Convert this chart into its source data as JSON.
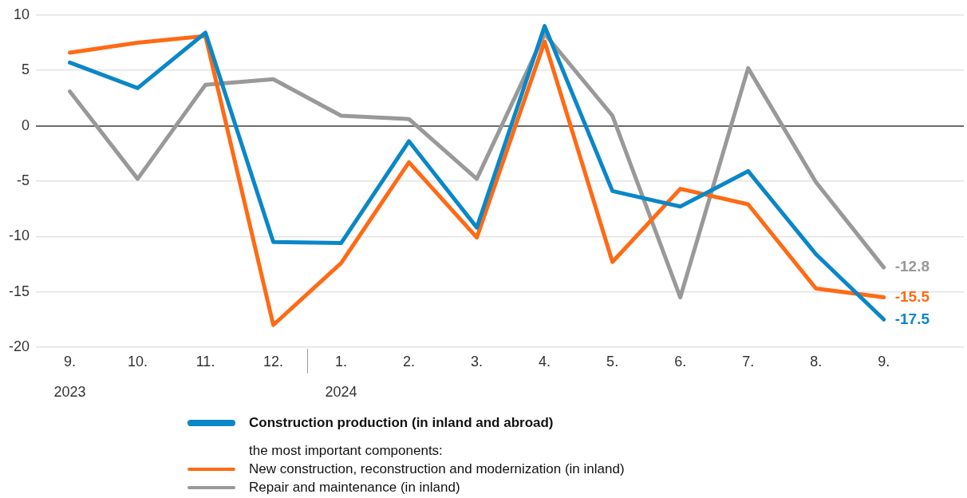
{
  "chart_data": {
    "type": "line",
    "categories": [
      "9.",
      "10.",
      "11.",
      "12.",
      "1.",
      "2.",
      "3.",
      "4.",
      "5.",
      "6.",
      "7.",
      "8.",
      "9."
    ],
    "series": [
      {
        "name": "Construction production (in inland and abroad)",
        "color": "#0a87c8",
        "values": [
          5.7,
          3.4,
          8.4,
          -10.5,
          -10.6,
          -1.4,
          -9.2,
          9.0,
          -5.9,
          -7.3,
          -4.1,
          -11.6,
          -17.5
        ],
        "value_labels": [
          null,
          null,
          null,
          null,
          null,
          null,
          null,
          null,
          null,
          null,
          null,
          null,
          "-17.5"
        ]
      },
      {
        "name": "New construction, reconstruction and modernization (in inland)",
        "color": "#ff6a14",
        "values": [
          6.6,
          7.5,
          8.1,
          -18.0,
          -12.4,
          -3.3,
          -10.1,
          7.6,
          -12.3,
          -5.7,
          -7.1,
          -14.7,
          -15.5
        ],
        "value_labels": [
          null,
          null,
          null,
          null,
          null,
          null,
          null,
          null,
          null,
          null,
          null,
          null,
          "-15.5"
        ]
      },
      {
        "name": "Repair and maintenance (in inland)",
        "color": "#999999",
        "values": [
          3.1,
          -4.8,
          3.7,
          4.2,
          0.9,
          0.6,
          -4.8,
          8.3,
          0.9,
          -15.5,
          5.2,
          -5.1,
          -12.8
        ],
        "value_labels": [
          null,
          null,
          null,
          null,
          null,
          null,
          null,
          null,
          null,
          null,
          null,
          null,
          "-12.8"
        ]
      }
    ],
    "ylim": [
      -20,
      10
    ],
    "yticks": [
      -20,
      -15,
      -10,
      -5,
      0,
      5,
      10
    ],
    "grid": "y",
    "legend": "bottom",
    "legend_title": "the most important components:",
    "annotations": [
      "2023",
      "2024"
    ]
  }
}
